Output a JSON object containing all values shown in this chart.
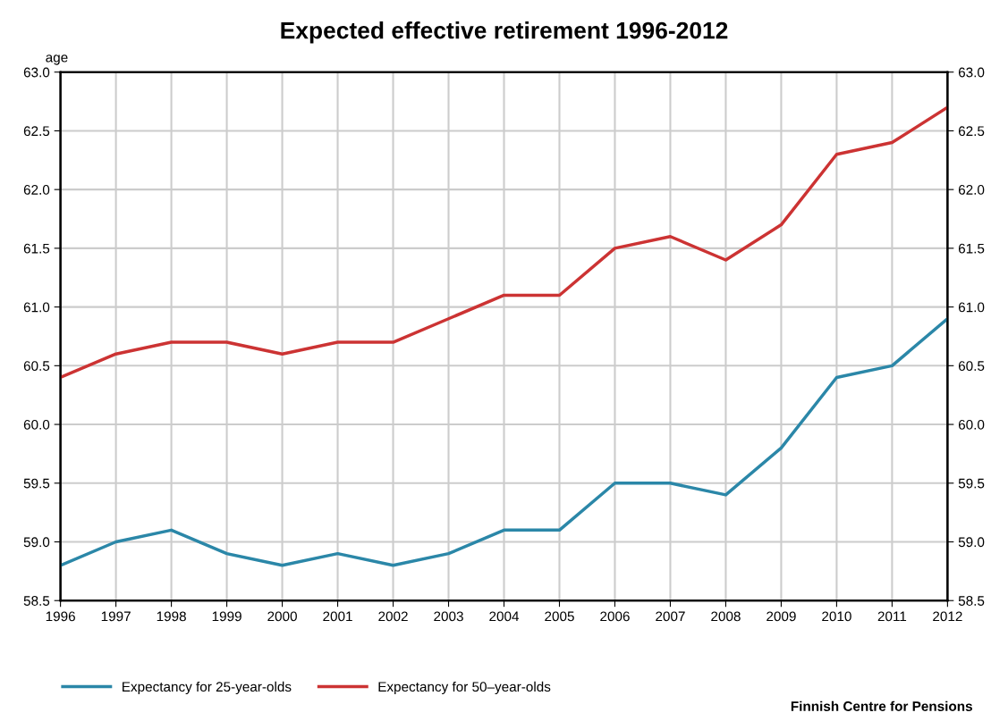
{
  "chart_data": {
    "type": "line",
    "title": "Expected effective retirement 1996-2012",
    "ylabel": "age",
    "x": [
      1996,
      1997,
      1998,
      1999,
      2000,
      2001,
      2002,
      2003,
      2004,
      2005,
      2006,
      2007,
      2008,
      2009,
      2010,
      2011,
      2012
    ],
    "series": [
      {
        "name": "Expectancy for 25-year-olds",
        "color": "#2b87a8",
        "values": [
          58.8,
          59.0,
          59.1,
          58.9,
          58.8,
          58.9,
          58.8,
          58.9,
          59.1,
          59.1,
          59.5,
          59.5,
          59.4,
          59.8,
          60.4,
          60.5,
          60.9
        ]
      },
      {
        "name": "Expectancy for 50–year-olds",
        "color": "#cc3333",
        "values": [
          60.4,
          60.6,
          60.7,
          60.7,
          60.6,
          60.7,
          60.7,
          60.9,
          61.1,
          61.1,
          61.5,
          61.6,
          61.4,
          61.7,
          62.3,
          62.4,
          62.7
        ]
      }
    ],
    "xlim": [
      1996,
      2012
    ],
    "xticks": [
      1996,
      1997,
      1998,
      1999,
      2000,
      2001,
      2002,
      2003,
      2004,
      2005,
      2006,
      2007,
      2008,
      2009,
      2010,
      2011,
      2012
    ],
    "ylim": [
      58.5,
      63.0
    ],
    "yticks": [
      58.5,
      {
        "value": 59,
        "label": "59.0"
      },
      59.5,
      {
        "value": 60,
        "label": "60.0"
      },
      60.5,
      {
        "value": 61,
        "label": "61.0"
      },
      61.5,
      {
        "value": 62,
        "label": "62.0"
      },
      62.5,
      {
        "value": 63,
        "label": "63.0"
      }
    ],
    "y2lim": [
      58.5,
      63.0
    ],
    "y2ticks": [
      58.5,
      {
        "value": 59,
        "label": "59.0"
      },
      59.5,
      {
        "value": 60,
        "label": "60.0"
      },
      60.5,
      {
        "value": 61,
        "label": "61.0"
      },
      61.5,
      {
        "value": 62,
        "label": "62.0"
      },
      62.5,
      {
        "value": 63,
        "label": "63.0"
      }
    ],
    "grid": true,
    "legend": "bottom left",
    "marker": "none",
    "line_style": "solid",
    "annotations": [
      "Finnish Centre for Pensions"
    ]
  }
}
